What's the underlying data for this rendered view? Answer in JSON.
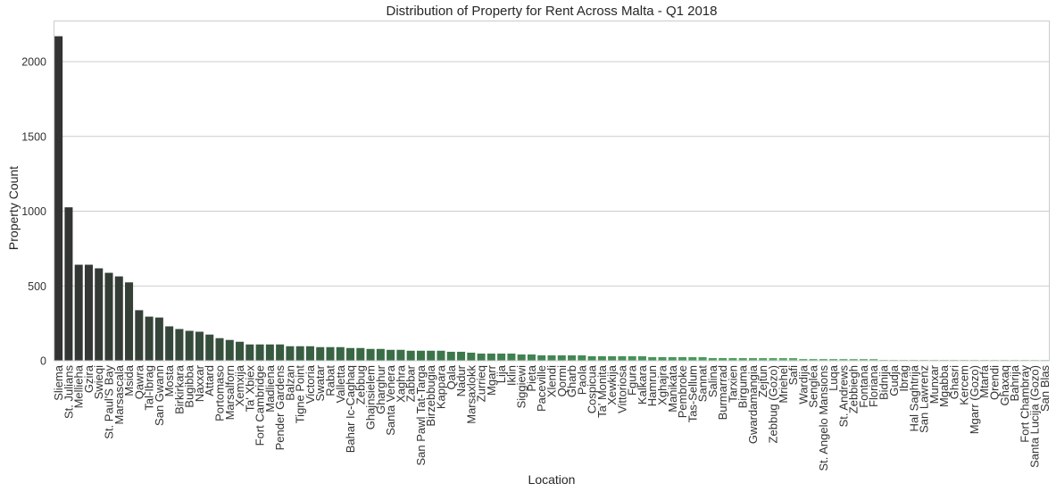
{
  "chart_data": {
    "type": "bar",
    "title": "Distribution of Property for Rent Across Malta - Q1 2018",
    "xlabel": "Location",
    "ylabel": "Property Count",
    "ylim": [
      0,
      2275
    ],
    "yticks": [
      0,
      500,
      1000,
      1500,
      2000
    ],
    "grid": "horizontal",
    "palette": [
      "#333333",
      "#3a6e47",
      "#4a9d5e",
      "#a6d8a6"
    ],
    "categories": [
      "Sliema",
      "St. Julians",
      "Mellieha",
      "Gzira",
      "Swieqi",
      "St. Paul'S Bay",
      "Marsascala",
      "Msida",
      "Qawra",
      "Tal-Ibrag",
      "San Gwann",
      "Mosta",
      "Birkirkara",
      "Bugibba",
      "Naxxar",
      "Attard",
      "Portomaso",
      "Marsalforn",
      "Xemxija",
      "Ta' Xbiex",
      "Fort Cambridge",
      "Madliena",
      "Pender Gardens",
      "Balzan",
      "Tigne Point",
      "Victoria",
      "Swatar",
      "Rabat",
      "Valletta",
      "Bahar Ic-Caghaq",
      "Zebbug",
      "Ghajnsielem",
      "Gharghur",
      "Santa Venera",
      "Xaghra",
      "Zabbar",
      "San Pawl Tat-Targa",
      "Birzebbugia",
      "Kappara",
      "Qala",
      "Nadur",
      "Marsaxlokk",
      "Zurrieq",
      "Mgarr",
      "Lija",
      "Iklin",
      "Siggiewi",
      "Pieta",
      "Paceville",
      "Xlendi",
      "Qormi",
      "Gharb",
      "Paola",
      "Cospicua",
      "Ta' Monita",
      "Xewkija",
      "Vittoriosa",
      "Fgura",
      "Kalkara",
      "Hamrun",
      "Xghajra",
      "Manikata",
      "Pembroke",
      "Tas-Sellum",
      "Sannat",
      "Salina",
      "Burmarrad",
      "Tarxien",
      "Birguma",
      "Gwardamangia",
      "Zejtun",
      "Zebbug (Gozo)",
      "Mriehel",
      "Safi",
      "Wardija",
      "Senglea",
      "St. Angelo Mansions",
      "Luqa",
      "St. Andrews",
      "Zebbiegh",
      "Fontana",
      "Floriana",
      "Bidnija",
      "Gudja",
      "Ibrag",
      "Hal Saghtrija",
      "San Lawrenz",
      "Munxar",
      "Mgabba",
      "Ghasri",
      "Kercem",
      "Mgarr (Gozo)",
      "Mtarfa",
      "Qrendi",
      "Ghaxaq",
      "Bahrija",
      "Fort Chambray",
      "Santa Lucija (Gozo)",
      "San Blas"
    ],
    "values": [
      2170,
      1026,
      642,
      642,
      618,
      588,
      564,
      524,
      338,
      295,
      289,
      230,
      212,
      200,
      194,
      175,
      151,
      139,
      127,
      109,
      109,
      109,
      109,
      97,
      97,
      97,
      91,
      91,
      91,
      85,
      85,
      79,
      79,
      73,
      73,
      67,
      67,
      67,
      67,
      60,
      60,
      54,
      48,
      48,
      48,
      48,
      42,
      42,
      36,
      36,
      36,
      36,
      36,
      30,
      30,
      30,
      30,
      30,
      30,
      24,
      24,
      24,
      24,
      24,
      24,
      18,
      18,
      18,
      18,
      18,
      18,
      18,
      18,
      18,
      12,
      12,
      12,
      12,
      12,
      12,
      12,
      12,
      6,
      6,
      6,
      6,
      6,
      6,
      6,
      6,
      6,
      6,
      6,
      6,
      6,
      6,
      6,
      6,
      6
    ]
  }
}
